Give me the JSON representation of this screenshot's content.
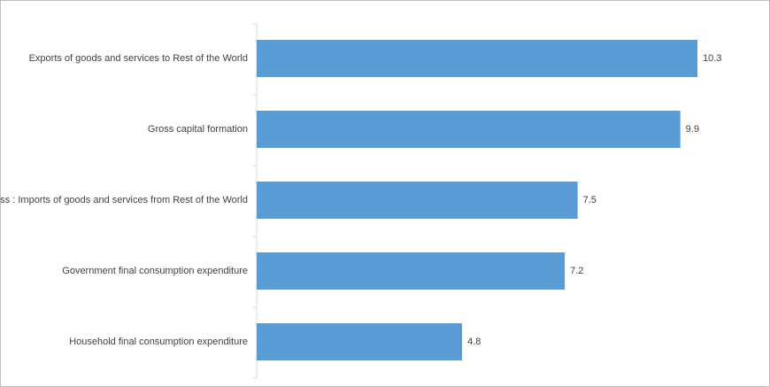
{
  "chart_data": {
    "type": "bar",
    "orientation": "horizontal",
    "categories": [
      "Exports of goods and services to Rest of the World",
      "Gross capital formation",
      "Less : Imports of goods and services from Rest of the World",
      "Government final consumption expenditure",
      "Household final consumption expenditure"
    ],
    "values": [
      10.3,
      9.9,
      7.5,
      7.2,
      4.8
    ],
    "color": "#5b9bd5"
  }
}
